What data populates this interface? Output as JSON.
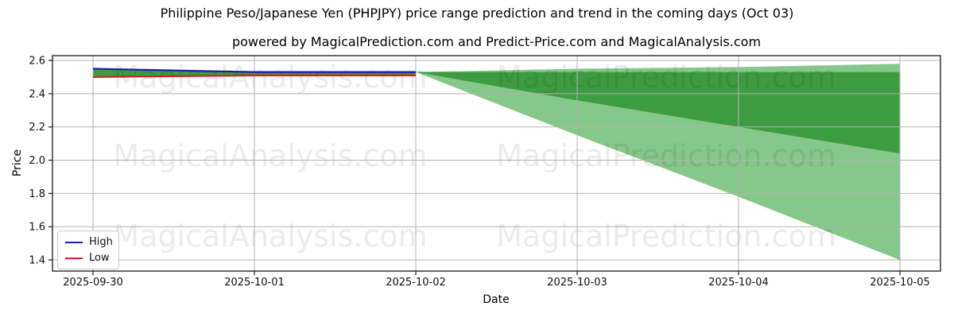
{
  "figure": {
    "title": "Philippine Peso/Japanese Yen (PHPJPY) price range prediction and trend in the coming days (Oct 03)",
    "subtitle": "powered by MagicalPrediction.com and Predict-Price.com and MagicalAnalysis.com"
  },
  "axes": {
    "x_label": "Date",
    "y_label": "Price",
    "x_ticks": [
      "2025-09-30",
      "2025-10-01",
      "2025-10-02",
      "2025-10-03",
      "2025-10-04",
      "2025-10-05"
    ],
    "y_ticks": [
      "2.6",
      "2.4",
      "2.2",
      "2.0",
      "1.8",
      "1.6",
      "1.4"
    ]
  },
  "legend": {
    "items": [
      {
        "label": "High",
        "color": "#1a1ab4"
      },
      {
        "label": "Low",
        "color": "#d42121"
      }
    ]
  },
  "watermarks": {
    "left_text": "MagicalAnalysis.com",
    "right_text": "MagicalPrediction.com"
  },
  "colors": {
    "inner_band": "#3d9c41",
    "outer_band": "#86c78a",
    "grid": "#b3b3b3",
    "spine": "#1a1a1a",
    "high_line": "#1a1ab4",
    "low_line": "#d42121",
    "tick_text": "#111111"
  },
  "chart_data": {
    "type": "line",
    "title": "Philippine Peso/Japanese Yen (PHPJPY) price range prediction and trend in the coming days (Oct 03)",
    "subtitle": "powered by MagicalPrediction.com and Predict-Price.com and MagicalAnalysis.com",
    "xlabel": "Date",
    "ylabel": "Price",
    "x": [
      "2025-09-30",
      "2025-10-01",
      "2025-10-02",
      "2025-10-03",
      "2025-10-04",
      "2025-10-05"
    ],
    "ylim": [
      1.33,
      2.63
    ],
    "grid": true,
    "legend_position": "lower left",
    "series": [
      {
        "name": "High",
        "color": "#1a1ab4",
        "x": [
          "2025-09-30",
          "2025-10-01",
          "2025-10-02"
        ],
        "values": [
          2.55,
          2.53,
          2.53
        ]
      },
      {
        "name": "Low",
        "color": "#d42121",
        "x": [
          "2025-09-30",
          "2025-10-01",
          "2025-10-02"
        ],
        "values": [
          2.5,
          2.51,
          2.51
        ]
      }
    ],
    "bands": [
      {
        "name": "history-range",
        "color": "#3d9c41",
        "x": [
          "2025-09-30",
          "2025-10-01",
          "2025-10-02"
        ],
        "high": [
          2.55,
          2.53,
          2.53
        ],
        "low": [
          2.5,
          2.51,
          2.51
        ]
      },
      {
        "name": "prediction-outer",
        "color": "#86c78a",
        "x": [
          "2025-10-02",
          "2025-10-03",
          "2025-10-04",
          "2025-10-05"
        ],
        "high": [
          2.53,
          2.55,
          2.56,
          2.58
        ],
        "low": [
          2.53,
          2.15,
          1.78,
          1.4
        ]
      },
      {
        "name": "prediction-inner",
        "color": "#3d9c41",
        "x": [
          "2025-10-02",
          "2025-10-03",
          "2025-10-04",
          "2025-10-05"
        ],
        "high": [
          2.53,
          2.53,
          2.53,
          2.53
        ],
        "low": [
          2.53,
          2.36,
          2.2,
          2.04
        ]
      }
    ]
  }
}
